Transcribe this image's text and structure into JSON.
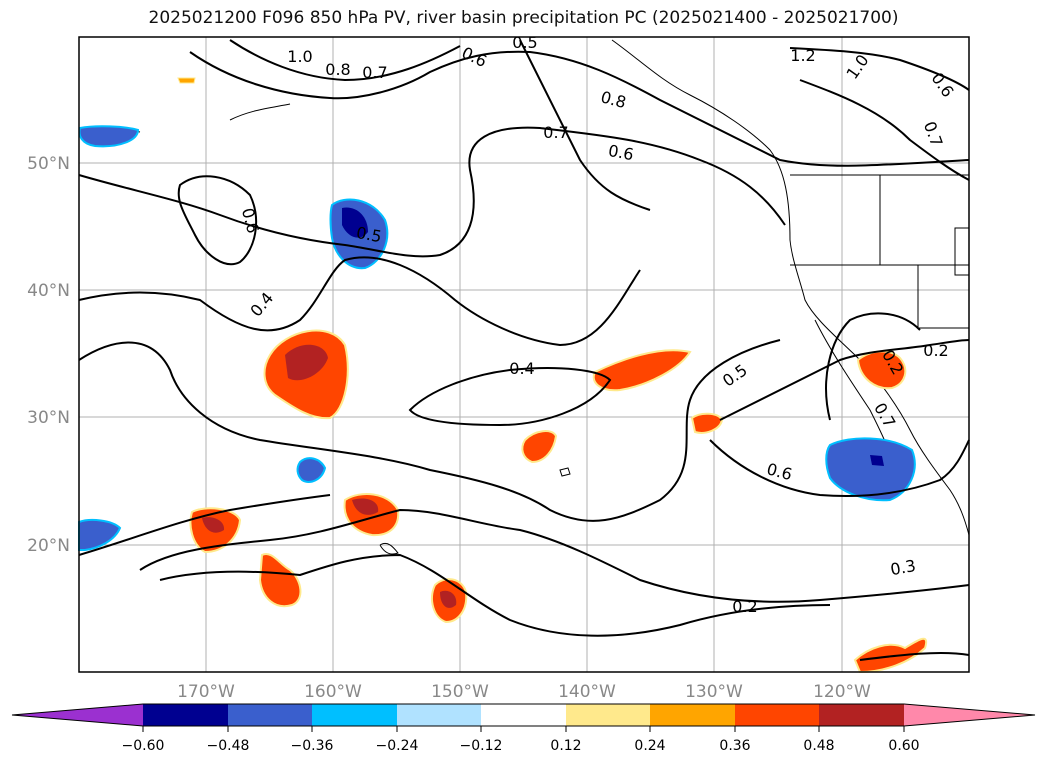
{
  "title": "2025021200 F096 850 hPa PV, river basin precipitation PC (2025021400 - 2025021700)",
  "map": {
    "lat_labels": [
      "50°N",
      "40°N",
      "30°N",
      "20°N"
    ],
    "lon_labels": [
      "170°W",
      "160°W",
      "150°W",
      "140°W",
      "130°W",
      "120°W"
    ],
    "contour_labels": [
      "1.0",
      "0.8",
      "0.7",
      "0.5",
      "0.6",
      "0.8",
      "0.7",
      "0.6",
      "1.2",
      "1.0",
      "0.6",
      "0.7",
      "0.6",
      "0.5",
      "0.4",
      "0.4",
      "0.5",
      "0.6",
      "0.7",
      "0.2",
      "0.2",
      "0.3",
      "0.2"
    ]
  },
  "colorbar": {
    "colors": [
      "#9b30d0",
      "#000090",
      "#3a5fcd",
      "#00bfff",
      "#b0e2ff",
      "#ffffff",
      "#ffe98c",
      "#ffa500",
      "#ff4500",
      "#b22222",
      "#ff88aa"
    ],
    "tick_labels": [
      "−0.60",
      "−0.48",
      "−0.36",
      "−0.24",
      "−0.12",
      "0.12",
      "0.24",
      "0.36",
      "0.48",
      "0.60"
    ]
  }
}
